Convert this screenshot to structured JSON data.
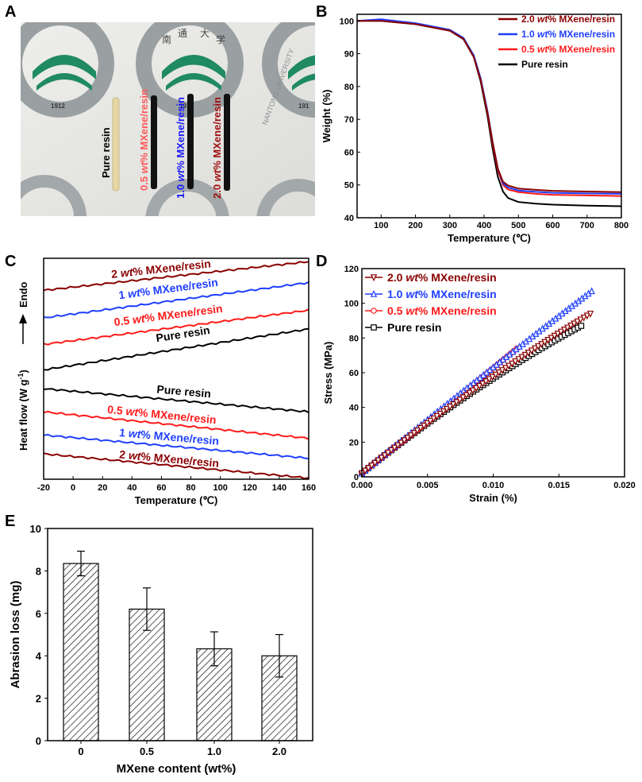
{
  "panels": {
    "a": "A",
    "b": "B",
    "c": "C",
    "d": "D",
    "e": "E"
  },
  "photo": {
    "samples": [
      {
        "label": "Pure resin",
        "color": "#000000",
        "bar_color": "#e8d9a8"
      },
      {
        "label_prefix": "0.5 ",
        "label_italic": "wt",
        "label_suffix": "% MXene/resin",
        "color": "#ff5a5a",
        "bar_color": "#111111"
      },
      {
        "label_prefix": "1.0 ",
        "label_italic": "wt",
        "label_suffix": "% MXene/resin",
        "color": "#1a1aff",
        "bar_color": "#111111"
      },
      {
        "label_prefix": "2.0 ",
        "label_italic": "wt",
        "label_suffix": "% MXene/resin",
        "color": "#a01010",
        "bar_color": "#111111"
      }
    ],
    "logo_year": "1912",
    "logo_year_partial": "191",
    "logo_chars": [
      "南",
      "通",
      "大",
      "学"
    ],
    "ring_text": "NANTONG UNIVERSITY"
  },
  "chart_data": [
    {
      "id": "B",
      "type": "line",
      "xlabel": "Temperature (℃)",
      "ylabel": "Weight (%)",
      "xlim": [
        30,
        800
      ],
      "ylim": [
        40,
        102
      ],
      "xticks": [
        100,
        200,
        300,
        400,
        500,
        600,
        700,
        800
      ],
      "yticks": [
        40,
        50,
        60,
        70,
        80,
        90,
        100
      ],
      "legend_position": "top-right",
      "series": [
        {
          "name": "2.0 wt% MXene/resin",
          "prefix": "2.0 ",
          "suffix": "% MXene/resin",
          "color": "#8b0000",
          "x": [
            30,
            100,
            200,
            300,
            340,
            370,
            390,
            410,
            425,
            440,
            455,
            470,
            500,
            550,
            600,
            700,
            800
          ],
          "y": [
            100,
            100,
            99,
            97,
            94.5,
            89,
            82,
            72,
            63,
            55,
            51,
            49.8,
            48.9,
            48.5,
            48.2,
            48,
            47.8
          ]
        },
        {
          "name": "1.0 wt% MXene/resin",
          "prefix": "1.0 ",
          "suffix": "% MXene/resin",
          "color": "#1f3fff",
          "x": [
            30,
            100,
            200,
            300,
            340,
            370,
            390,
            410,
            425,
            440,
            455,
            470,
            500,
            550,
            600,
            700,
            800
          ],
          "y": [
            100,
            100.5,
            99.3,
            97.3,
            94.8,
            89.5,
            82.5,
            72.5,
            63,
            55,
            50.5,
            49.2,
            48.3,
            47.9,
            47.6,
            47.4,
            47.3
          ]
        },
        {
          "name": "0.5 wt% MXene/resin",
          "prefix": "0.5 ",
          "suffix": "% MXene/resin",
          "color": "#ff1a1a",
          "x": [
            30,
            100,
            200,
            300,
            340,
            370,
            390,
            410,
            425,
            440,
            455,
            470,
            500,
            550,
            600,
            700,
            800
          ],
          "y": [
            100,
            100.2,
            99.1,
            97.1,
            94.6,
            89.2,
            82.2,
            72,
            62.5,
            54.5,
            50,
            48.6,
            47.8,
            47.3,
            47,
            46.8,
            46.6
          ]
        },
        {
          "name": "Pure resin",
          "prefix": "Pure resin",
          "suffix": "",
          "color": "#000000",
          "x": [
            30,
            100,
            200,
            300,
            340,
            370,
            390,
            410,
            425,
            440,
            455,
            470,
            500,
            550,
            600,
            700,
            800
          ],
          "y": [
            100,
            100,
            99,
            97,
            94.4,
            89,
            81.5,
            71,
            61,
            52.5,
            48,
            46,
            44.8,
            44.3,
            44,
            43.7,
            43.5
          ]
        }
      ]
    },
    {
      "id": "C",
      "type": "line",
      "xlabel": "Temperature (℃)",
      "ylabel": "Heat flow (W g⁻¹) → Endo",
      "ylabel_main": "Heat flow (W g",
      "ylabel_sup": "-1",
      "ylabel_close": ")",
      "ylabel_endo": "Endo",
      "xlim": [
        -20,
        160
      ],
      "ylim": [
        0,
        10
      ],
      "xticks": [
        -20,
        0,
        20,
        40,
        60,
        80,
        100,
        120,
        140,
        160
      ],
      "series": [
        {
          "name": "2 wt% MXene/resin heating",
          "label_prefix": "2 ",
          "label_suffix": "% MXene/resin",
          "color": "#8b0000",
          "x": [
            -20,
            160
          ],
          "y": [
            8.55,
            9.85
          ],
          "label_x": 60,
          "label_y": 9.35
        },
        {
          "name": "1 wt% MXene/resin heating",
          "label_prefix": "1 ",
          "label_suffix": "% MXene/resin",
          "color": "#1f3fff",
          "x": [
            -20,
            160
          ],
          "y": [
            7.3,
            8.9
          ],
          "label_x": 65,
          "label_y": 8.45
        },
        {
          "name": "0.5 wt% MXene/resin heating",
          "label_prefix": "0.5 ",
          "label_suffix": "% MXene/resin",
          "color": "#ff1a1a",
          "x": [
            -20,
            160
          ],
          "y": [
            6.1,
            7.65
          ],
          "label_x": 65,
          "label_y": 7.25
        },
        {
          "name": "Pure resin heating",
          "label_prefix": "Pure resin",
          "label_suffix": "",
          "color": "#000000",
          "x": [
            -20,
            160
          ],
          "y": [
            4.95,
            6.8
          ],
          "label_x": 75,
          "label_y": 6.4
        },
        {
          "name": "Pure resin cooling",
          "label_prefix": "Pure resin",
          "label_suffix": "",
          "color": "#000000",
          "x": [
            -20,
            160
          ],
          "y": [
            4.1,
            3.05
          ],
          "label_x": 75,
          "label_y": 3.8
        },
        {
          "name": "0.5 wt% MXene/resin cooling",
          "label_prefix": "0.5 ",
          "label_suffix": "% MXene/resin",
          "color": "#ff1a1a",
          "x": [
            -20,
            160
          ],
          "y": [
            3.05,
            1.85
          ],
          "label_x": 60,
          "label_y": 2.75
        },
        {
          "name": "1 wt% MXene/resin cooling",
          "label_prefix": "1 ",
          "label_suffix": "% MXene/resin",
          "color": "#1f3fff",
          "x": [
            -20,
            160
          ],
          "y": [
            2.0,
            0.95
          ],
          "label_x": 65,
          "label_y": 1.75
        },
        {
          "name": "2 wt% MXene/resin cooling",
          "label_prefix": "2 ",
          "label_suffix": "% MXene/resin",
          "color": "#8b0000",
          "x": [
            -20,
            160
          ],
          "y": [
            1.15,
            0.05
          ],
          "label_x": 65,
          "label_y": 0.75
        }
      ]
    },
    {
      "id": "D",
      "type": "scatter",
      "xlabel": "Strain (%)",
      "ylabel": "Stress (MPa)",
      "xlim": [
        0,
        0.02
      ],
      "ylim": [
        0,
        120
      ],
      "xticks": [
        0.0,
        0.005,
        0.01,
        0.015,
        0.02
      ],
      "xtick_labels": [
        "0.000",
        "0.005",
        "0.010",
        "0.015",
        "0.020"
      ],
      "yticks": [
        0,
        20,
        40,
        60,
        80,
        100,
        120
      ],
      "legend_position": "top-left",
      "series": [
        {
          "name": "2.0 wt% MXene/resin",
          "prefix": "2.0 ",
          "suffix": "% MXene/resin",
          "color": "#8b0000",
          "marker": "triangle-down",
          "end_strain": 0.0174,
          "end_stress": 94,
          "curve": 0.6
        },
        {
          "name": "1.0 wt% MXene/resin",
          "prefix": "1.0 ",
          "suffix": "% MXene/resin",
          "color": "#1f3fff",
          "marker": "triangle-up",
          "end_strain": 0.0175,
          "end_stress": 107,
          "curve": 0.35
        },
        {
          "name": "0.5 wt% MXene/resin",
          "prefix": "0.5 ",
          "suffix": "% MXene/resin",
          "color": "#ff1a1a",
          "marker": "circle",
          "end_strain": 0.0118,
          "end_stress": 74,
          "curve": 0.1
        },
        {
          "name": "Pure resin",
          "prefix": "Pure resin",
          "suffix": "",
          "color": "#000000",
          "marker": "square",
          "end_strain": 0.0167,
          "end_stress": 87,
          "curve": 0.75
        }
      ]
    },
    {
      "id": "E",
      "type": "bar",
      "xlabel": "MXene content (wt%)",
      "ylabel": "Abrasion loss (mg)",
      "categories": [
        "0",
        "0.5",
        "1.0",
        "2.0"
      ],
      "values": [
        8.35,
        6.2,
        4.33,
        4.0
      ],
      "errors": [
        0.58,
        1.0,
        0.8,
        1.0
      ],
      "ylim": [
        0,
        10
      ],
      "yticks": [
        0,
        2,
        4,
        6,
        8,
        10
      ]
    }
  ]
}
